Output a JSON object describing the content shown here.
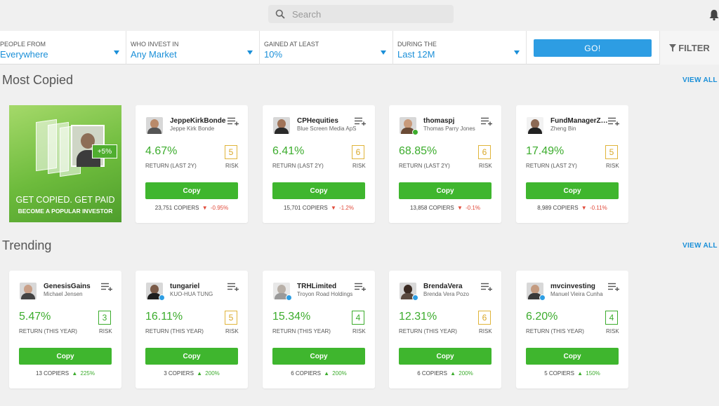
{
  "search": {
    "placeholder": "Search"
  },
  "filters": [
    {
      "label": "PEOPLE FROM",
      "value": "Everywhere"
    },
    {
      "label": "WHO INVEST IN",
      "value": "Any Market"
    },
    {
      "label": "GAINED AT LEAST",
      "value": "10%"
    },
    {
      "label": "DURING THE",
      "value": "Last 12M"
    }
  ],
  "go_label": "GO!",
  "filter_label": "FILTER",
  "colors": {
    "accent": "#1a8fd8",
    "copy": "#3fb62e",
    "gain": "#3cac2d",
    "loss": "#e14b3b"
  },
  "most_copied": {
    "title": "Most Copied",
    "view_all": "VIEW ALL",
    "promo": {
      "line1": "GET COPIED. GET PAID",
      "line2": "BECOME A POPULAR INVESTOR",
      "badge": "+5%"
    },
    "cards": [
      {
        "username": "JeppeKirkBonde",
        "fullname": "Jeppe Kirk Bonde",
        "return": "4.67%",
        "return_label": "RETURN (LAST 2Y)",
        "risk": "5",
        "risk_label": "RISK",
        "copy_label": "Copy",
        "copiers": "23,751 COPIERS",
        "change_arrow": "▼",
        "change": "-0.95%"
      },
      {
        "username": "CPHequities",
        "fullname": "Blue Screen Media ApS",
        "return": "6.41%",
        "return_label": "RETURN (LAST 2Y)",
        "risk": "6",
        "risk_label": "RISK",
        "copy_label": "Copy",
        "copiers": "15,701 COPIERS",
        "change_arrow": "▼",
        "change": "-1.2%"
      },
      {
        "username": "thomaspj",
        "fullname": "Thomas Parry Jones",
        "return": "68.85%",
        "return_label": "RETURN (LAST 2Y)",
        "risk": "6",
        "risk_label": "RISK",
        "copy_label": "Copy",
        "copiers": "13,858 COPIERS",
        "change_arrow": "▼",
        "change": "-0.1%"
      },
      {
        "username": "FundManagerZhengBin",
        "fullname": "Zheng Bin",
        "return": "17.49%",
        "return_label": "RETURN (LAST 2Y)",
        "risk": "5",
        "risk_label": "RISK",
        "copy_label": "Copy",
        "copiers": "8,989 COPIERS",
        "change_arrow": "▼",
        "change": "-0.11%"
      }
    ]
  },
  "trending": {
    "title": "Trending",
    "view_all": "VIEW ALL",
    "cards": [
      {
        "username": "GenesisGains",
        "fullname": "Michael Jensen",
        "return": "5.47%",
        "return_label": "RETURN (THIS YEAR)",
        "risk": "3",
        "risk_label": "RISK",
        "copy_label": "Copy",
        "copiers": "13 COPIERS",
        "change_arrow": "▲",
        "change": "225%"
      },
      {
        "username": "tungariel",
        "fullname": "KUO-HUA TUNG",
        "return": "16.11%",
        "return_label": "RETURN (THIS YEAR)",
        "risk": "5",
        "risk_label": "RISK",
        "copy_label": "Copy",
        "copiers": "3 COPIERS",
        "change_arrow": "▲",
        "change": "200%"
      },
      {
        "username": "TRHLimited",
        "fullname": "Troyon Road Holdings",
        "return": "15.34%",
        "return_label": "RETURN (THIS YEAR)",
        "risk": "4",
        "risk_label": "RISK",
        "copy_label": "Copy",
        "copiers": "6 COPIERS",
        "change_arrow": "▲",
        "change": "200%"
      },
      {
        "username": "BrendaVera",
        "fullname": "Brenda Vera Pozo",
        "return": "12.31%",
        "return_label": "RETURN (THIS YEAR)",
        "risk": "6",
        "risk_label": "RISK",
        "copy_label": "Copy",
        "copiers": "6 COPIERS",
        "change_arrow": "▲",
        "change": "200%"
      },
      {
        "username": "mvcinvesting",
        "fullname": "Manuel Vieira Cunha",
        "return": "6.20%",
        "return_label": "RETURN (THIS YEAR)",
        "risk": "4",
        "risk_label": "RISK",
        "copy_label": "Copy",
        "copiers": "5 COPIERS",
        "change_arrow": "▲",
        "change": "150%"
      }
    ]
  }
}
